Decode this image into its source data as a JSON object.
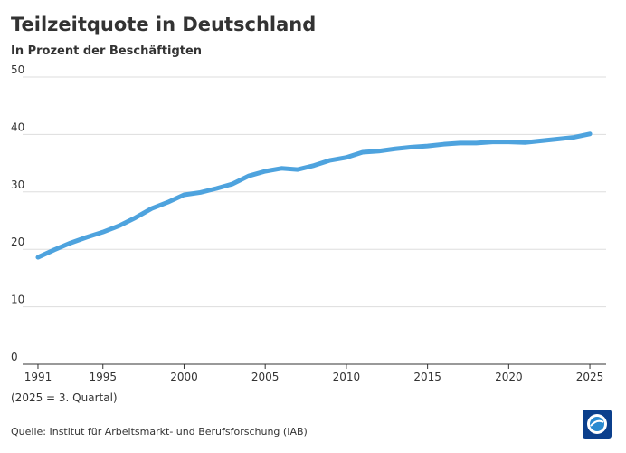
{
  "chart_data": {
    "type": "line",
    "title": "Teilzeitquote in Deutschland",
    "subtitle": "In Prozent der Beschäftigten",
    "note": "(2025 = 3. Quartal)",
    "source": "Quelle: Institut für Arbeitsmarkt- und Berufsforschung (IAB)",
    "x": [
      1991,
      1992,
      1993,
      1994,
      1995,
      1996,
      1997,
      1998,
      1999,
      2000,
      2001,
      2002,
      2003,
      2004,
      2005,
      2006,
      2007,
      2008,
      2009,
      2010,
      2011,
      2012,
      2013,
      2014,
      2015,
      2016,
      2017,
      2018,
      2019,
      2020,
      2021,
      2022,
      2023,
      2024,
      2025
    ],
    "series": [
      {
        "name": "Teilzeitquote",
        "color": "#4ea3de",
        "values": [
          18.6,
          19.9,
          21.1,
          22.1,
          23.0,
          24.1,
          25.5,
          27.1,
          28.2,
          29.5,
          29.9,
          30.6,
          31.4,
          32.8,
          33.6,
          34.1,
          33.9,
          34.6,
          35.5,
          36.0,
          36.9,
          37.1,
          37.5,
          37.8,
          38.0,
          38.3,
          38.5,
          38.5,
          38.7,
          38.7,
          38.6,
          38.9,
          39.2,
          39.5,
          40.1
        ]
      }
    ],
    "xlim": [
      1990.5,
      2026
    ],
    "xticks": [
      1991,
      1995,
      2000,
      2005,
      2010,
      2015,
      2020,
      2025
    ],
    "ylim": [
      0,
      50
    ],
    "yticks": [
      0,
      10,
      20,
      30,
      40,
      50
    ],
    "grid": true
  }
}
